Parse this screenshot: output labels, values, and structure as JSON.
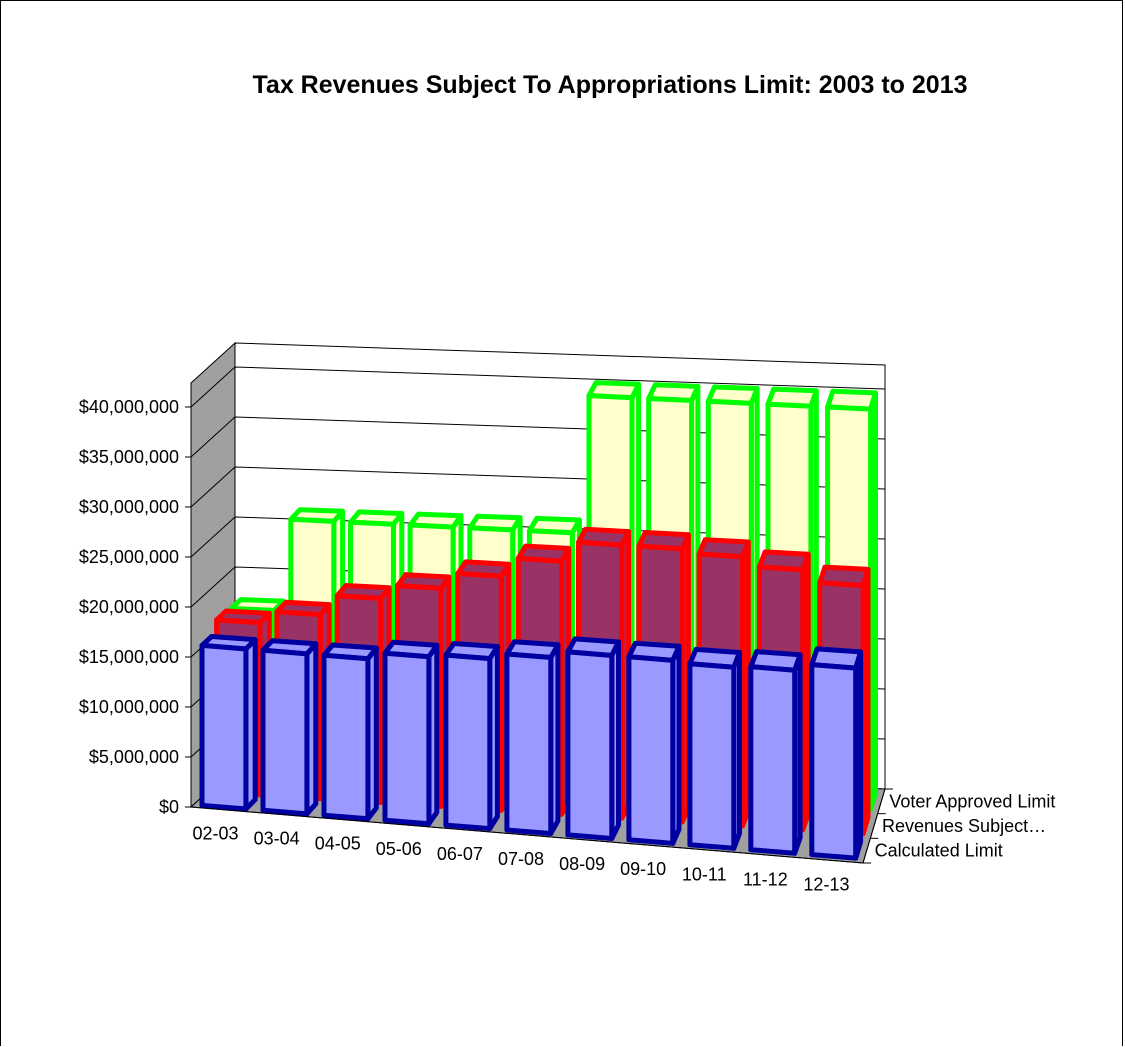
{
  "chart_data": {
    "type": "bar",
    "variant": "3d-column",
    "title": "Tax Revenues Subject To Appropriations Limit: 2003 to 2013",
    "xlabel": "",
    "ylabel": "",
    "categories": [
      "02-03",
      "03-04",
      "04-05",
      "05-06",
      "06-07",
      "07-08",
      "08-09",
      "09-10",
      "10-11",
      "11-12",
      "12-13"
    ],
    "ylim": [
      0,
      40000000
    ],
    "y_ticks": [
      0,
      5000000,
      10000000,
      15000000,
      20000000,
      25000000,
      30000000,
      35000000,
      40000000
    ],
    "y_tick_labels": [
      "$0",
      "$5,000,000",
      "$10,000,000",
      "$15,000,000",
      "$20,000,000",
      "$25,000,000",
      "$30,000,000",
      "$35,000,000",
      "$40,000,000"
    ],
    "grid": true,
    "series": [
      {
        "name": "Calculated Limit",
        "color": "#0000a0",
        "fill": "#9999ff",
        "values": [
          16000000,
          16000000,
          16000000,
          16700000,
          17000000,
          17600000,
          18300000,
          18300000,
          18100000,
          18300000,
          19000000
        ]
      },
      {
        "name": "Revenues Subject…",
        "color": "#ff0000",
        "fill": "#993366",
        "values": [
          17200000,
          18400000,
          20400000,
          21800000,
          23400000,
          25300000,
          27300000,
          27300000,
          26900000,
          26000000,
          24800000
        ]
      },
      {
        "name": "Voter Approved Limit",
        "color": "#00ff00",
        "fill": "#ffffcc",
        "values": [
          17000000,
          26200000,
          26200000,
          26200000,
          26200000,
          26200000,
          40000000,
          40000000,
          40000000,
          40000000,
          40000000
        ]
      }
    ]
  }
}
